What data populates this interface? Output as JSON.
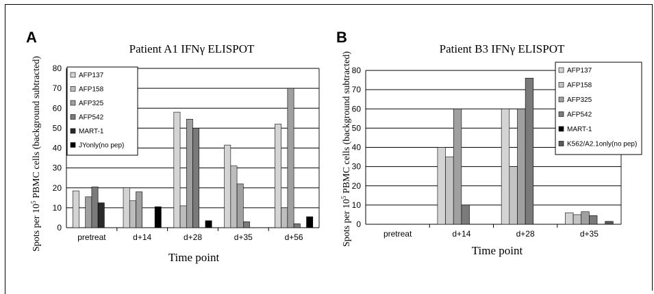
{
  "chart_data": [
    {
      "panel": "A",
      "type": "bar",
      "title": "Patient A1 IFNγ ELISPOT",
      "xlabel": "Time point",
      "ylabel": "Spots per 10^5 PBMC cells (background subtracted)",
      "ylim": [
        0,
        80
      ],
      "yticks": [
        0,
        10,
        20,
        30,
        40,
        50,
        60,
        70,
        80
      ],
      "categories": [
        "pretreat",
        "d+14",
        "d+28",
        "d+35",
        "d+56"
      ],
      "legend_position": "top-left",
      "series": [
        {
          "name": "AFP137",
          "color": "#d4d4d4",
          "values": [
            18.5,
            20,
            58,
            41.5,
            52
          ]
        },
        {
          "name": "AFP158",
          "color": "#bdbdbd",
          "values": [
            0,
            13.5,
            11,
            31,
            10
          ]
        },
        {
          "name": "AFP325",
          "color": "#a0a0a0",
          "values": [
            15.5,
            18,
            54.5,
            22,
            70
          ]
        },
        {
          "name": "AFP542",
          "color": "#7a7a7a",
          "values": [
            20.5,
            0,
            50,
            3,
            2
          ]
        },
        {
          "name": "MART-1",
          "color": "#2a2a2a",
          "values": [
            12.5,
            0,
            0,
            0,
            0
          ]
        },
        {
          "name": "JYonly(no pep)",
          "color": "#000000",
          "values": [
            0,
            10.5,
            3.5,
            0,
            5.5
          ]
        }
      ]
    },
    {
      "panel": "B",
      "type": "bar",
      "title": "Patient B3 IFNγ ELISPOT",
      "xlabel": "Time point",
      "ylabel": "Spots per 10^5 PBMC cells (background subtracted)",
      "ylim": [
        0,
        80
      ],
      "yticks": [
        0,
        10,
        20,
        30,
        40,
        50,
        60,
        70,
        80
      ],
      "categories": [
        "pretreat",
        "d+14",
        "d+28",
        "d+35"
      ],
      "legend_position": "top-right",
      "series": [
        {
          "name": "AFP137",
          "color": "#d4d4d4",
          "values": [
            0,
            40,
            60,
            6
          ]
        },
        {
          "name": "AFP158",
          "color": "#c4c4c4",
          "values": [
            0,
            35,
            30,
            5
          ]
        },
        {
          "name": "AFP325",
          "color": "#a0a0a0",
          "values": [
            0,
            60,
            60,
            6.5
          ]
        },
        {
          "name": "AFP542",
          "color": "#7a7a7a",
          "values": [
            0,
            10,
            76,
            4.5
          ]
        },
        {
          "name": "MART-1",
          "color": "#000000",
          "values": [
            0,
            0,
            0,
            0
          ]
        },
        {
          "name": "K562/A2.1only(no pep)",
          "color": "#5a5a5a",
          "values": [
            0,
            0,
            0,
            1.5
          ]
        }
      ]
    }
  ]
}
